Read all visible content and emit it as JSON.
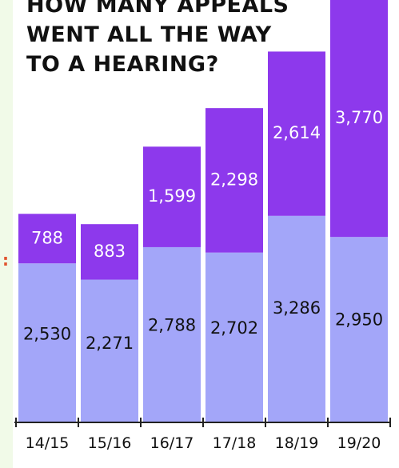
{
  "title_lines": [
    "HOW MANY APPEALS",
    "WENT ALL THE WAY",
    "TO A HEARING?"
  ],
  "left_marker": ":",
  "colors": {
    "bottom_series": "#a3a6f9",
    "top_series": "#8d39ec",
    "background": "#ffffff",
    "left_strip": "#f1fae8"
  },
  "chart_data": {
    "type": "bar",
    "stacked": true,
    "title": "HOW MANY APPEALS WENT ALL THE WAY TO A HEARING?",
    "xlabel": "",
    "ylabel": "",
    "categories": [
      "14/15",
      "15/16",
      "16/17",
      "17/18",
      "18/19",
      "19/20"
    ],
    "series": [
      {
        "values": [
          2530,
          2271,
          2788,
          2702,
          3286,
          2950
        ],
        "labels": [
          "2,530",
          "2,271",
          "2,788",
          "2,702",
          "3,286",
          "2,950"
        ]
      },
      {
        "values": [
          788,
          883,
          1599,
          2298,
          2614,
          3770
        ],
        "labels": [
          "788",
          "883",
          "1,599",
          "2,298",
          "2,614",
          "3,770"
        ]
      }
    ],
    "ylim": [
      0,
      6720
    ],
    "grid": false,
    "legend": "none"
  }
}
